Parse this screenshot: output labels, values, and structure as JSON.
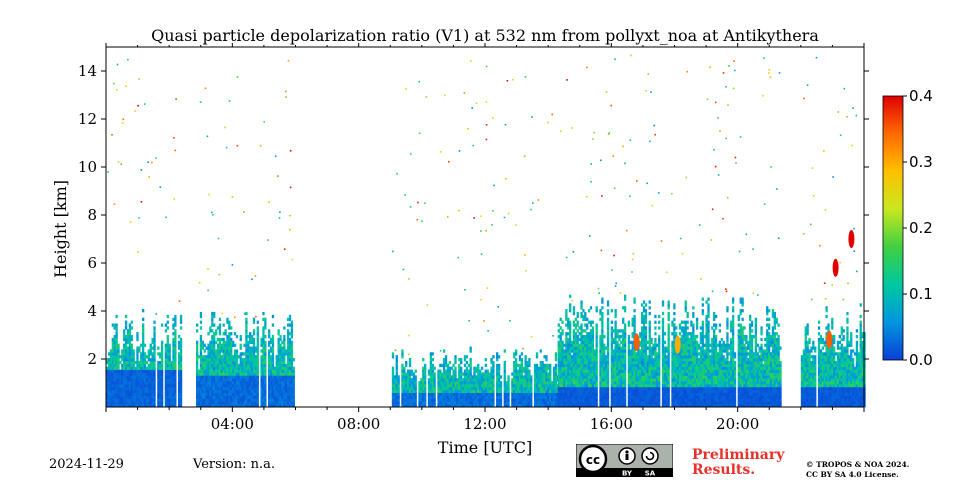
{
  "chart_data": {
    "type": "heatmap",
    "title": "Quasi particle depolarization ratio (V1) at 532 nm from pollyxt_noa at Antikythera",
    "xlabel": "Time [UTC]",
    "ylabel": "Height [km]",
    "xlim_hours": [
      0,
      24
    ],
    "ylim_km": [
      0,
      15
    ],
    "x_ticks": [
      {
        "hour": 4,
        "label": "04:00"
      },
      {
        "hour": 8,
        "label": "08:00"
      },
      {
        "hour": 12,
        "label": "12:00"
      },
      {
        "hour": 16,
        "label": "16:00"
      },
      {
        "hour": 20,
        "label": "20:00"
      }
    ],
    "y_ticks": [
      {
        "value": 2,
        "label": "2"
      },
      {
        "value": 4,
        "label": "4"
      },
      {
        "value": 6,
        "label": "6"
      },
      {
        "value": 8,
        "label": "8"
      },
      {
        "value": 10,
        "label": "10"
      },
      {
        "value": 12,
        "label": "12"
      },
      {
        "value": 14,
        "label": "14"
      }
    ],
    "colorbar": {
      "range": [
        0.0,
        0.4
      ],
      "ticks": [
        {
          "value": 0.0,
          "label": "0.0"
        },
        {
          "value": 0.1,
          "label": "0.1"
        },
        {
          "value": 0.2,
          "label": "0.2"
        },
        {
          "value": 0.3,
          "label": "0.3"
        },
        {
          "value": 0.4,
          "label": "0.4"
        }
      ],
      "colormap": [
        "#0a3fd6",
        "#0096e0",
        "#00c8a0",
        "#40d040",
        "#c8e820",
        "#ffc000",
        "#ff6a00",
        "#e00000"
      ]
    },
    "data_segments_hours": [
      [
        0.0,
        2.35,
        0.0,
        3.7,
        1.5,
        0.04
      ],
      [
        2.85,
        5.95,
        0.0,
        3.6,
        1.3,
        0.05
      ],
      [
        9.05,
        14.3,
        0.0,
        2.2,
        0.5,
        0.05
      ],
      [
        14.3,
        21.35,
        0.0,
        4.3,
        0.8,
        0.03
      ],
      [
        22.0,
        24.0,
        0.0,
        3.9,
        0.8,
        0.03
      ]
    ],
    "segment_fields": [
      "start_hour",
      "end_hour",
      "base_km",
      "top_km",
      "low_layer_top_km",
      "typical_depol"
    ],
    "features": [
      {
        "hour": 23.1,
        "height_km": 5.8,
        "depol": 0.4
      },
      {
        "hour": 23.6,
        "height_km": 7.0,
        "depol": 0.4
      },
      {
        "hour": 22.9,
        "height_km": 2.8,
        "depol": 0.35
      },
      {
        "hour": 16.8,
        "height_km": 2.7,
        "depol": 0.35
      },
      {
        "hour": 18.1,
        "height_km": 2.6,
        "depol": 0.3
      }
    ]
  },
  "footer": {
    "date": "2024-11-29",
    "version": "Version: n.a.",
    "preliminary_line1": "Preliminary",
    "preliminary_line2": "Results.",
    "copyright_line1": "© TROPOS & NOA 2024.",
    "copyright_line2": "CC BY SA 4.0 License.",
    "cc_badge_text": [
      "BY",
      "SA"
    ]
  }
}
